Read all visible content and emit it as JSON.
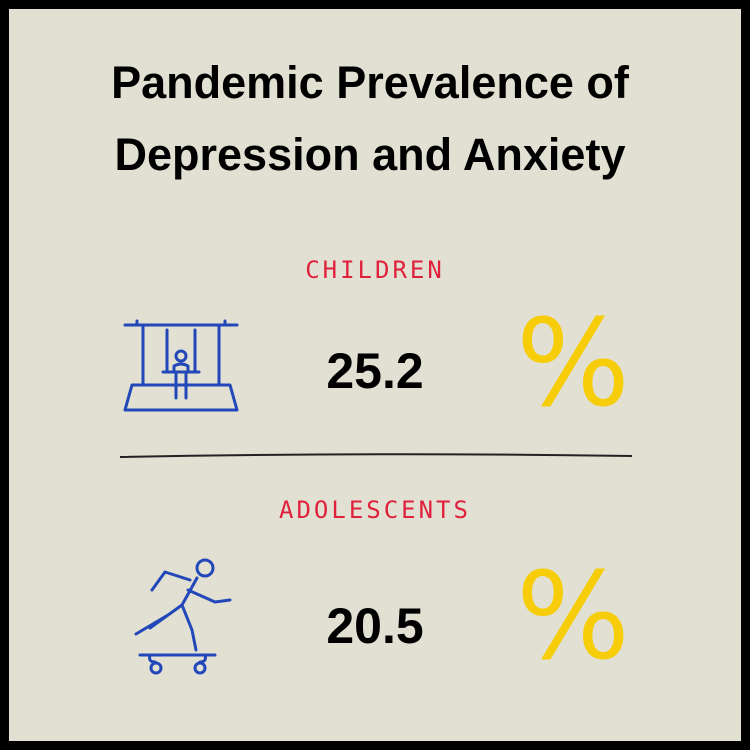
{
  "title_lines": [
    "Pandemic Prevalence of",
    "Depression and Anxiety"
  ],
  "sections": [
    {
      "label": "CHILDREN",
      "value": 25.2,
      "unit": "%"
    },
    {
      "label": "ADOLESCENTS",
      "value": 20.5,
      "unit": "%"
    }
  ]
}
